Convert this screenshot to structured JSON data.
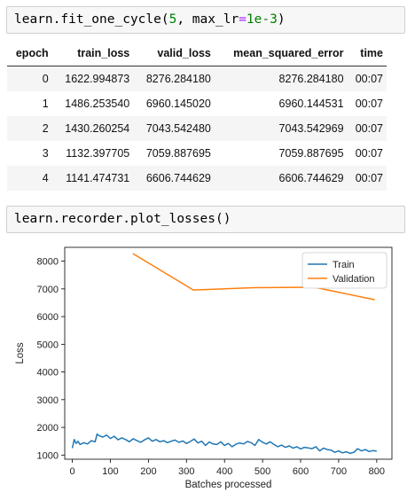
{
  "cells": {
    "cell1": {
      "tokens": [
        {
          "text": "learn.fit_one_cycle(",
          "cls": ""
        },
        {
          "text": "5",
          "cls": "tok-num"
        },
        {
          "text": ", max_lr",
          "cls": ""
        },
        {
          "text": "=",
          "cls": "tok-op"
        },
        {
          "text": "1e-3",
          "cls": "tok-num"
        },
        {
          "text": ")",
          "cls": ""
        }
      ]
    },
    "cell2": {
      "tokens": [
        {
          "text": "learn.recorder.plot_losses()",
          "cls": ""
        }
      ]
    }
  },
  "table": {
    "headers": [
      "epoch",
      "train_loss",
      "valid_loss",
      "mean_squared_error",
      "time"
    ],
    "rows": [
      [
        "0",
        "1622.994873",
        "8276.284180",
        "8276.284180",
        "00:07"
      ],
      [
        "1",
        "1486.253540",
        "6960.145020",
        "6960.144531",
        "00:07"
      ],
      [
        "2",
        "1430.260254",
        "7043.542480",
        "7043.542969",
        "00:07"
      ],
      [
        "3",
        "1132.397705",
        "7059.887695",
        "7059.887695",
        "00:07"
      ],
      [
        "4",
        "1141.474731",
        "6606.744629",
        "6606.744629",
        "00:07"
      ]
    ]
  },
  "chart_data": {
    "type": "line",
    "xlabel": "Batches processed",
    "ylabel": "Loss",
    "xlim": [
      -20,
      840
    ],
    "ylim": [
      850,
      8500
    ],
    "xticks": [
      0,
      100,
      200,
      300,
      400,
      500,
      600,
      700,
      800
    ],
    "yticks": [
      1000,
      2000,
      3000,
      4000,
      5000,
      6000,
      7000,
      8000
    ],
    "legend_position": "top-right",
    "series": [
      {
        "name": "Train",
        "color": "#1f77b4",
        "x": [
          0,
          5,
          10,
          15,
          20,
          30,
          40,
          50,
          60,
          65,
          70,
          80,
          90,
          100,
          110,
          120,
          130,
          140,
          150,
          160,
          170,
          180,
          190,
          200,
          210,
          220,
          230,
          240,
          250,
          260,
          270,
          280,
          290,
          300,
          310,
          320,
          330,
          340,
          350,
          360,
          370,
          380,
          390,
          400,
          410,
          420,
          430,
          440,
          450,
          460,
          470,
          480,
          490,
          500,
          510,
          520,
          530,
          540,
          550,
          560,
          570,
          580,
          590,
          600,
          610,
          620,
          630,
          640,
          650,
          660,
          670,
          680,
          690,
          700,
          710,
          720,
          730,
          740,
          750,
          760,
          770,
          780,
          790,
          800
        ],
        "values": [
          1250,
          1560,
          1420,
          1500,
          1380,
          1450,
          1400,
          1520,
          1480,
          1760,
          1700,
          1650,
          1720,
          1600,
          1680,
          1550,
          1620,
          1560,
          1480,
          1590,
          1520,
          1460,
          1550,
          1620,
          1500,
          1560,
          1480,
          1520,
          1450,
          1500,
          1540,
          1460,
          1510,
          1420,
          1490,
          1580,
          1440,
          1500,
          1350,
          1470,
          1400,
          1380,
          1480,
          1350,
          1420,
          1300,
          1390,
          1440,
          1400,
          1490,
          1450,
          1350,
          1560,
          1460,
          1400,
          1480,
          1380,
          1300,
          1360,
          1280,
          1330,
          1250,
          1300,
          1220,
          1280,
          1260,
          1230,
          1300,
          1150,
          1250,
          1200,
          1180,
          1100,
          1150,
          1080,
          1120,
          1060,
          1100,
          1230,
          1150,
          1200,
          1130,
          1160,
          1140
        ]
      },
      {
        "name": "Validation",
        "color": "#ff7f0e",
        "x": [
          159,
          318,
          477,
          636,
          795
        ],
        "values": [
          8276.28,
          6960.15,
          7043.54,
          7059.89,
          6606.74
        ]
      }
    ]
  }
}
